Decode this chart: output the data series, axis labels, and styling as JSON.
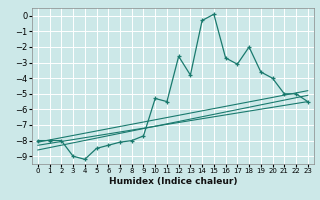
{
  "title": "",
  "xlabel": "Humidex (Indice chaleur)",
  "bg_color": "#cce8e8",
  "grid_color": "#ffffff",
  "line_color": "#1a7a6e",
  "xlim": [
    -0.5,
    23.5
  ],
  "ylim": [
    -9.5,
    0.5
  ],
  "xticks": [
    0,
    1,
    2,
    3,
    4,
    5,
    6,
    7,
    8,
    9,
    10,
    11,
    12,
    13,
    14,
    15,
    16,
    17,
    18,
    19,
    20,
    21,
    22,
    23
  ],
  "yticks": [
    0,
    -1,
    -2,
    -3,
    -4,
    -5,
    -6,
    -7,
    -8,
    -9
  ],
  "main_x": [
    0,
    1,
    2,
    3,
    4,
    5,
    6,
    7,
    8,
    9,
    10,
    11,
    12,
    13,
    14,
    15,
    16,
    17,
    18,
    19,
    20,
    21,
    22,
    23
  ],
  "main_y": [
    -8,
    -8,
    -8,
    -9,
    -9.2,
    -8.5,
    -8.3,
    -8.1,
    -8.0,
    -7.7,
    -5.3,
    -5.5,
    -2.6,
    -3.8,
    -0.3,
    0.1,
    -2.7,
    -3.1,
    -2.0,
    -3.6,
    -4.0,
    -5.0,
    -5.0,
    -5.5
  ],
  "trend1_x": [
    0,
    23
  ],
  "trend1_y": [
    -8.1,
    -4.8
  ],
  "trend2_x": [
    0,
    23
  ],
  "trend2_y": [
    -8.3,
    -5.5
  ],
  "trend3_x": [
    0,
    23
  ],
  "trend3_y": [
    -8.6,
    -5.1
  ]
}
